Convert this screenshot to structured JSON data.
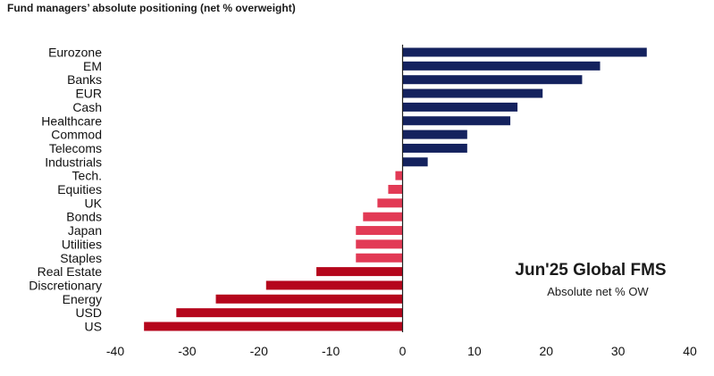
{
  "chart_data": {
    "type": "bar",
    "orientation": "horizontal",
    "title": "Fund managers’ absolute positioning (net % overweight)",
    "annotation_title": "Jun'25 Global FMS",
    "annotation_subtitle": "Absolute net % OW",
    "categories": [
      "Eurozone",
      "EM",
      "Banks",
      "EUR",
      "Cash",
      "Healthcare",
      "Commod",
      "Telecoms",
      "Industrials",
      "Tech.",
      "Equities",
      "UK",
      "Bonds",
      "Japan",
      "Utilities",
      "Staples",
      "Real Estate",
      "Discretionary",
      "Energy",
      "USD",
      "US"
    ],
    "values": [
      34,
      27.5,
      25,
      19.5,
      16,
      15,
      9,
      9,
      3.5,
      -1,
      -2,
      -3.5,
      -5.5,
      -6.5,
      -6.5,
      -6.5,
      -12,
      -19,
      -26,
      -31.5,
      -36
    ],
    "xlim": [
      -40,
      40
    ],
    "xticks": [
      -40,
      -30,
      -20,
      -10,
      0,
      10,
      20,
      30,
      40
    ],
    "grid": false,
    "legend": "none",
    "colors": {
      "positive": "#14225e",
      "negative_light": "#e23a55",
      "negative_dark": "#b5061c",
      "axis": "#222222"
    }
  }
}
